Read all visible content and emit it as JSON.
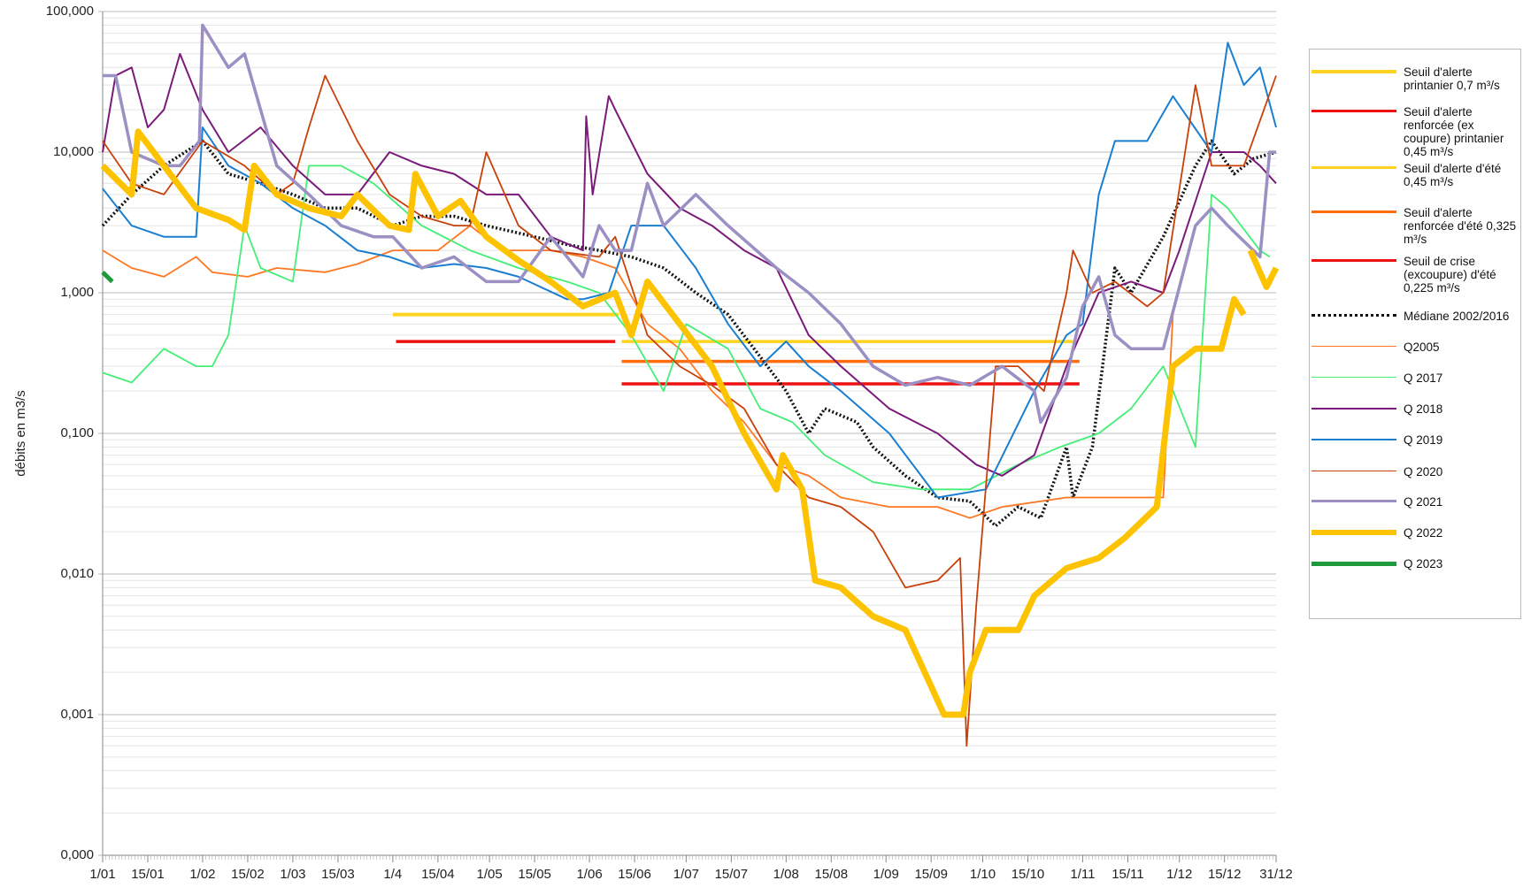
{
  "chart_data": {
    "type": "line",
    "y_label": "débits en m3/s",
    "log_scale_y": true,
    "grid": true,
    "xlim": [
      1,
      365
    ],
    "ylim": [
      0.0001,
      100
    ],
    "xticks": [
      {
        "value": 1,
        "label": "1/01"
      },
      {
        "value": 15,
        "label": "15/01"
      },
      {
        "value": 32,
        "label": "1/02"
      },
      {
        "value": 46,
        "label": "15/02"
      },
      {
        "value": 60,
        "label": "1/03"
      },
      {
        "value": 74,
        "label": "15/03"
      },
      {
        "value": 91,
        "label": "1/4"
      },
      {
        "value": 105,
        "label": "15/04"
      },
      {
        "value": 121,
        "label": "1/05"
      },
      {
        "value": 135,
        "label": "15/05"
      },
      {
        "value": 152,
        "label": "1/06"
      },
      {
        "value": 166,
        "label": "15/06"
      },
      {
        "value": 182,
        "label": "1/07"
      },
      {
        "value": 196,
        "label": "15/07"
      },
      {
        "value": 213,
        "label": "1/08"
      },
      {
        "value": 227,
        "label": "15/08"
      },
      {
        "value": 244,
        "label": "1/09"
      },
      {
        "value": 258,
        "label": "15/09"
      },
      {
        "value": 274,
        "label": "1/10"
      },
      {
        "value": 288,
        "label": "15/10"
      },
      {
        "value": 305,
        "label": "1/11"
      },
      {
        "value": 319,
        "label": "15/11"
      },
      {
        "value": 335,
        "label": "1/12"
      },
      {
        "value": 349,
        "label": "15/12"
      },
      {
        "value": 365,
        "label": "31/12"
      }
    ],
    "yticks": [
      {
        "value": 0.0001,
        "label": "0,000"
      },
      {
        "value": 0.001,
        "label": "0,001"
      },
      {
        "value": 0.01,
        "label": "0,010"
      },
      {
        "value": 0.1,
        "label": "0,100"
      },
      {
        "value": 1,
        "label": "1,000"
      },
      {
        "value": 10,
        "label": "10,000"
      },
      {
        "value": 100,
        "label": "100,000"
      }
    ],
    "series": [
      {
        "name": "Seuil d'alerte printanier 0,7 m³/s",
        "color": "#ffd320",
        "line_width": 4,
        "x": [
          91,
          161
        ],
        "values": [
          0.7,
          0.7
        ]
      },
      {
        "name": "Seuil d'alerte renforcée (ex coupure) printanier 0,45 m³/s",
        "color": "#ee1111",
        "line_width": 3.5,
        "x": [
          92,
          160
        ],
        "values": [
          0.45,
          0.45
        ]
      },
      {
        "name": "Seuil d'alerte d'été 0,45 m³/s",
        "color": "#ffd320",
        "line_width": 3.5,
        "x": [
          162,
          302
        ],
        "values": [
          0.45,
          0.45
        ]
      },
      {
        "name": "Seuil d'alerte renforcée d'été 0,325 m³/s",
        "color": "#ff6d10",
        "line_width": 3.5,
        "x": [
          162,
          304
        ],
        "values": [
          0.325,
          0.325
        ]
      },
      {
        "name": "Seuil de crise (excoupure) d'été 0,225 m³/s",
        "color": "#ee1111",
        "line_width": 3.5,
        "x": [
          162,
          304
        ],
        "values": [
          0.225,
          0.225
        ]
      },
      {
        "name": "Médiane 2002/2016",
        "color": "#111111",
        "line_width": 3.5,
        "style": "dotted",
        "x": [
          1,
          10,
          20,
          32,
          40,
          50,
          60,
          70,
          80,
          91,
          100,
          110,
          120,
          135,
          145,
          155,
          165,
          175,
          185,
          195,
          205,
          213,
          220,
          225,
          235,
          240,
          250,
          260,
          270,
          278,
          285,
          292,
          300,
          302,
          308,
          315,
          320,
          330,
          340,
          345,
          352,
          358,
          365
        ],
        "values": [
          3,
          5,
          8,
          12,
          7,
          6,
          5,
          4,
          4,
          3,
          3.5,
          3.5,
          3,
          2.5,
          2.2,
          2,
          1.8,
          1.5,
          1,
          0.7,
          0.35,
          0.2,
          0.1,
          0.15,
          0.12,
          0.08,
          0.05,
          0.035,
          0.033,
          0.022,
          0.03,
          0.025,
          0.08,
          0.035,
          0.08,
          1.5,
          1,
          2.5,
          8,
          12,
          7,
          9,
          10
        ]
      },
      {
        "name": "Q2005",
        "color": "#ff7722",
        "line_width": 1.8,
        "x": [
          1,
          10,
          20,
          30,
          35,
          46,
          55,
          70,
          80,
          91,
          105,
          115,
          125,
          140,
          150,
          160,
          170,
          180,
          190,
          200,
          210,
          220,
          230,
          245,
          260,
          270,
          280,
          300,
          320,
          330,
          333
        ],
        "values": [
          2,
          1.5,
          1.3,
          1.8,
          1.4,
          1.3,
          1.5,
          1.4,
          1.6,
          2,
          2,
          3,
          2,
          2,
          1.8,
          1.5,
          0.6,
          0.4,
          0.2,
          0.12,
          0.06,
          0.05,
          0.035,
          0.03,
          0.03,
          0.025,
          0.03,
          0.035,
          0.035,
          0.035,
          0.7
        ]
      },
      {
        "name": "Q 2017",
        "color": "#44ee77",
        "line_width": 1.8,
        "x": [
          1,
          10,
          20,
          30,
          35,
          40,
          45,
          50,
          60,
          65,
          75,
          85,
          100,
          115,
          130,
          145,
          155,
          165,
          175,
          182,
          195,
          205,
          215,
          225,
          240,
          255,
          270,
          285,
          298,
          310,
          320,
          330,
          340,
          345,
          350,
          360,
          363
        ],
        "values": [
          0.27,
          0.23,
          0.4,
          0.3,
          0.3,
          0.5,
          3,
          1.5,
          1.2,
          8,
          8,
          6,
          3,
          2,
          1.5,
          1.2,
          1,
          0.5,
          0.2,
          0.6,
          0.4,
          0.15,
          0.12,
          0.07,
          0.045,
          0.04,
          0.04,
          0.06,
          0.08,
          0.1,
          0.15,
          0.3,
          0.08,
          5,
          4,
          2,
          1.8
        ]
      },
      {
        "name": "Q 2018",
        "color": "#7a1a7a",
        "line_width": 2,
        "x": [
          1,
          5,
          10,
          15,
          20,
          25,
          32,
          40,
          50,
          60,
          70,
          80,
          90,
          100,
          110,
          120,
          130,
          140,
          150,
          151,
          153,
          158,
          160,
          170,
          180,
          190,
          200,
          210,
          220,
          230,
          245,
          260,
          272,
          280,
          290,
          300,
          310,
          320,
          330,
          335,
          345,
          355,
          360,
          365
        ],
        "values": [
          10,
          35,
          40,
          15,
          20,
          50,
          20,
          10,
          15,
          8,
          5,
          5,
          10,
          8,
          7,
          5,
          5,
          2.5,
          2,
          18,
          5,
          25,
          20,
          7,
          4,
          3,
          2,
          1.5,
          0.5,
          0.3,
          0.15,
          0.1,
          0.06,
          0.05,
          0.07,
          0.3,
          1,
          1.2,
          1,
          2,
          10,
          10,
          8,
          6
        ]
      },
      {
        "name": "Q 2019",
        "color": "#1a7fd0",
        "line_width": 2,
        "x": [
          1,
          10,
          20,
          30,
          32,
          40,
          50,
          60,
          70,
          80,
          90,
          100,
          110,
          120,
          130,
          145,
          150,
          158,
          165,
          175,
          185,
          195,
          205,
          213,
          220,
          230,
          245,
          260,
          275,
          290,
          300,
          305,
          310,
          315,
          325,
          333,
          345,
          350,
          355,
          360,
          365
        ],
        "values": [
          5.5,
          3,
          2.5,
          2.5,
          15,
          8,
          6,
          4,
          3,
          2,
          1.8,
          1.5,
          1.6,
          1.5,
          1.3,
          0.9,
          0.9,
          1,
          3,
          3,
          1.5,
          0.6,
          0.3,
          0.45,
          0.3,
          0.2,
          0.1,
          0.035,
          0.04,
          0.2,
          0.5,
          0.6,
          5,
          12,
          12,
          25,
          10,
          60,
          30,
          40,
          15
        ]
      },
      {
        "name": "Q 2020",
        "color": "#c8400a",
        "line_width": 1.8,
        "x": [
          1,
          10,
          20,
          32,
          45,
          55,
          60,
          65,
          70,
          80,
          90,
          100,
          110,
          115,
          120,
          130,
          140,
          155,
          160,
          170,
          180,
          190,
          200,
          210,
          220,
          230,
          240,
          250,
          260,
          267,
          269,
          272,
          278,
          285,
          293,
          300,
          302,
          308,
          315,
          325,
          330,
          340,
          345,
          355,
          365
        ],
        "values": [
          12,
          6,
          5,
          12,
          8,
          5,
          6,
          15,
          35,
          12,
          5,
          3.5,
          3,
          3,
          10,
          3,
          2,
          1.8,
          2.5,
          0.5,
          0.3,
          0.22,
          0.15,
          0.06,
          0.035,
          0.03,
          0.02,
          0.008,
          0.009,
          0.013,
          0.0006,
          0.006,
          0.3,
          0.3,
          0.2,
          1,
          2,
          1,
          1.2,
          0.8,
          1,
          30,
          8,
          8,
          35
        ]
      },
      {
        "name": "Q 2021",
        "color": "#9b8fc4",
        "line_width": 3.5,
        "x": [
          1,
          5,
          10,
          20,
          25,
          31,
          32,
          40,
          45,
          50,
          55,
          65,
          75,
          85,
          91,
          100,
          110,
          120,
          130,
          140,
          150,
          155,
          160,
          165,
          170,
          175,
          185,
          195,
          210,
          220,
          230,
          240,
          250,
          260,
          270,
          280,
          290,
          292,
          300,
          305,
          310,
          315,
          320,
          330,
          340,
          345,
          350,
          360,
          363,
          365
        ],
        "values": [
          35,
          35,
          10,
          8,
          8,
          12,
          80,
          40,
          50,
          20,
          8,
          5,
          3,
          2.5,
          2.5,
          1.5,
          1.8,
          1.2,
          1.2,
          2.5,
          1.3,
          3,
          2,
          2,
          6,
          3,
          5,
          3,
          1.5,
          1,
          0.6,
          0.3,
          0.22,
          0.25,
          0.22,
          0.3,
          0.2,
          0.12,
          0.25,
          0.8,
          1.3,
          0.5,
          0.4,
          0.4,
          3,
          4,
          3,
          1.8,
          10,
          10
        ]
      },
      {
        "name": "Q 2022",
        "color": "#fdc300",
        "line_width": 7,
        "x": [
          1,
          10,
          12,
          20,
          30,
          40,
          45,
          48,
          55,
          65,
          75,
          80,
          90,
          96,
          98,
          105,
          112,
          120,
          130,
          140,
          150,
          160,
          165,
          170,
          180,
          190,
          200,
          210,
          212,
          218,
          222,
          230,
          240,
          250,
          256,
          262,
          268,
          270,
          275,
          285,
          290,
          300,
          310,
          318,
          328,
          333,
          340,
          348,
          352,
          355,
          356,
          357,
          362,
          365
        ],
        "values": [
          8,
          5,
          14,
          8,
          4,
          3.3,
          2.8,
          8,
          5,
          4,
          3.5,
          5,
          3,
          2.8,
          7,
          3.5,
          4.5,
          2.5,
          1.7,
          1.2,
          0.8,
          1,
          0.5,
          1.2,
          0.6,
          0.3,
          0.1,
          0.04,
          0.07,
          0.04,
          0.009,
          0.008,
          0.005,
          0.004,
          0.002,
          0.001,
          0.001,
          0.002,
          0.004,
          0.004,
          0.007,
          0.011,
          0.013,
          0.018,
          0.03,
          0.3,
          0.4,
          0.4,
          0.9,
          0.7,
          null,
          2,
          1.1,
          1.5
        ]
      },
      {
        "name": "Q 2023",
        "color": "#1e9a3c",
        "line_width": 5,
        "x": [
          1,
          4
        ],
        "values": [
          1.4,
          1.2
        ]
      }
    ]
  }
}
